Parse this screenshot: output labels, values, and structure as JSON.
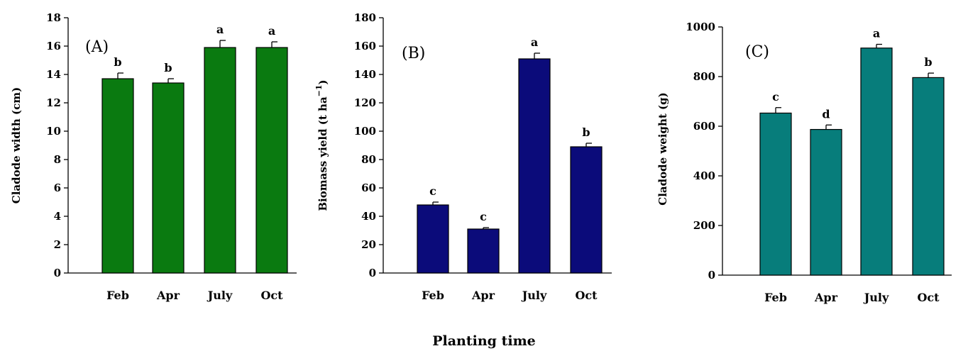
{
  "x_title": "Planting time",
  "chart_data": [
    {
      "type": "bar",
      "panel_label": "(A)",
      "ylabel": "Cladode width (cm)",
      "categories": [
        "Feb",
        "Apr",
        "July",
        "Oct"
      ],
      "values": [
        13.7,
        13.4,
        15.9,
        15.9
      ],
      "errors": [
        0.4,
        0.3,
        0.5,
        0.4
      ],
      "letters": [
        "b",
        "b",
        "a",
        "a"
      ],
      "ylim": [
        0,
        18
      ],
      "yticks": [
        0,
        2,
        4,
        6,
        8,
        10,
        12,
        14,
        16,
        18
      ],
      "bar_color": "#0a7a10",
      "grid": false
    },
    {
      "type": "bar",
      "panel_label": "(B)",
      "ylabel": "Biomass yield (t ha",
      "ylabel_sup": "−1",
      "ylabel_end": ")",
      "categories": [
        "Feb",
        "Apr",
        "July",
        "Oct"
      ],
      "values": [
        48,
        31,
        151,
        89
      ],
      "errors": [
        2,
        1,
        4,
        2.5
      ],
      "letters": [
        "c",
        "c",
        "a",
        "b"
      ],
      "ylim": [
        0,
        180
      ],
      "yticks": [
        0,
        20,
        40,
        60,
        80,
        100,
        120,
        140,
        160,
        180
      ],
      "bar_color": "#0b0b7a",
      "grid": false
    },
    {
      "type": "bar",
      "panel_label": "(C)",
      "ylabel": "Cladode weight (g)",
      "categories": [
        "Feb",
        "Apr",
        "July",
        "Oct"
      ],
      "values": [
        653,
        587,
        915,
        796
      ],
      "errors": [
        22,
        18,
        15,
        18
      ],
      "letters": [
        "c",
        "d",
        "a",
        "b"
      ],
      "ylim": [
        0,
        1000
      ],
      "yticks": [
        0,
        200,
        400,
        600,
        800,
        1000
      ],
      "bar_color": "#077d7b",
      "grid": false
    }
  ]
}
